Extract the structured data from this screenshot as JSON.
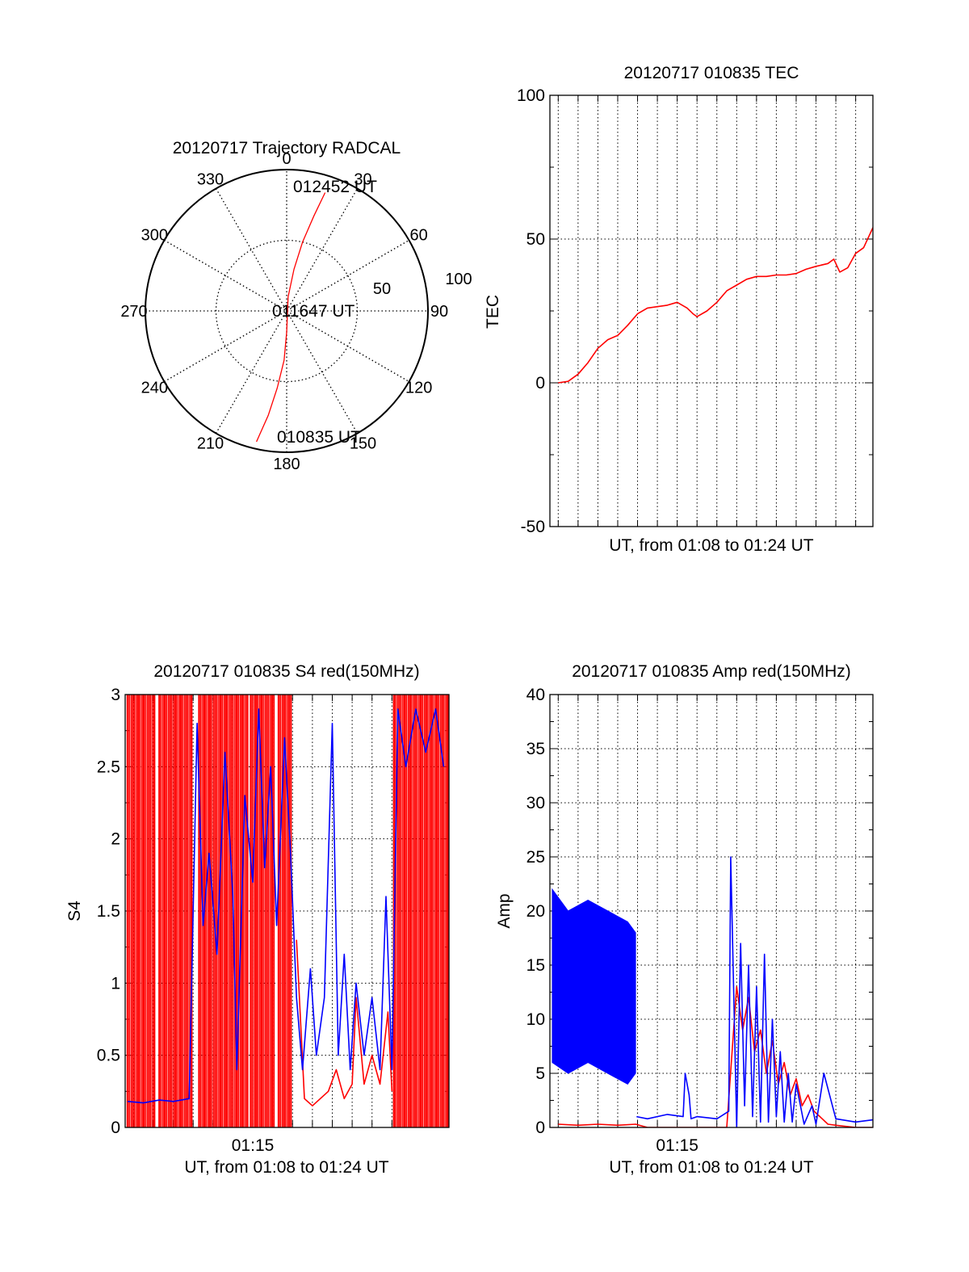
{
  "chart_data": [
    {
      "id": "trajectory",
      "type": "polar",
      "title": "20120717 Trajectory RADCAL",
      "azimuth_labels": [
        "0",
        "30",
        "60",
        "90",
        "120",
        "150",
        "180",
        "210",
        "240",
        "270",
        "300",
        "330"
      ],
      "radius_labels": [
        "50",
        "100"
      ],
      "rmax": 100,
      "start_label": "010835 UT",
      "mid_label": "011647 UT",
      "end_label": "012452 UT",
      "trajectory": [
        [
          193,
          95
        ],
        [
          190,
          75
        ],
        [
          187,
          55
        ],
        [
          183,
          35
        ],
        [
          180,
          15
        ],
        [
          6,
          10
        ],
        [
          10,
          30
        ],
        [
          13,
          50
        ],
        [
          16,
          70
        ],
        [
          18,
          88
        ]
      ],
      "line_color": "#ff0000"
    },
    {
      "id": "tec",
      "type": "line",
      "title": "20120717 010835 TEC",
      "xlabel": "UT, from 01:08 to 01:24 UT",
      "ylabel": "TEC",
      "xlim": [
        8.58,
        24.87
      ],
      "ylim": [
        -50,
        100
      ],
      "yticks": [
        "100",
        "50",
        "0",
        "-50"
      ],
      "ytick_values": [
        100,
        50,
        0,
        -50
      ],
      "grid": true,
      "series": [
        {
          "color": "#ff0000",
          "x": [
            9.0,
            9.5,
            10.0,
            10.5,
            11.0,
            11.5,
            12.0,
            12.5,
            13.0,
            13.5,
            14.0,
            14.5,
            15.0,
            15.5,
            15.8,
            16.0,
            16.5,
            17.0,
            17.5,
            18.0,
            18.5,
            19.0,
            19.5,
            20.0,
            20.5,
            21.0,
            21.5,
            22.0,
            22.6,
            22.9,
            23.2,
            23.6,
            24.0,
            24.4,
            24.87
          ],
          "y": [
            0,
            0.5,
            3,
            7,
            12,
            15,
            16.5,
            20,
            24,
            26,
            26.5,
            27,
            28,
            26,
            24,
            23,
            25,
            28,
            32,
            34,
            36,
            37,
            37,
            37.5,
            37.5,
            38,
            39.5,
            40.5,
            41.5,
            43,
            38.5,
            40,
            45,
            47,
            54
          ]
        }
      ]
    },
    {
      "id": "s4",
      "type": "line",
      "title": "20120717 010835 S4 red(150MHz)",
      "xlabel": "UT, from 01:08 to 01:24 UT",
      "ylabel": "S4",
      "xtick_label": "01:15",
      "xtick_value": 15,
      "xlim": [
        8.58,
        24.87
      ],
      "ylim": [
        0,
        3
      ],
      "yticks": [
        "3",
        "2.5",
        "2",
        "1.5",
        "1",
        "0.5",
        "0"
      ],
      "ytick_values": [
        3,
        2.5,
        2,
        1.5,
        1,
        0.5,
        0
      ],
      "grid": true,
      "series": [
        {
          "color": "#ff0000",
          "saturated_ranges": [
            [
              8.7,
              10.1
            ],
            [
              10.3,
              12.0
            ],
            [
              12.3,
              14.8
            ],
            [
              14.9,
              16.1
            ],
            [
              16.3,
              17.0
            ],
            [
              22.1,
              24.87
            ]
          ],
          "x": [
            17.2,
            17.6,
            18.0,
            18.4,
            18.8,
            19.2,
            19.6,
            20.0,
            20.2,
            20.6,
            21.0,
            21.4,
            21.8,
            22.0
          ],
          "y": [
            1.3,
            0.2,
            0.15,
            0.2,
            0.25,
            0.4,
            0.2,
            0.3,
            0.9,
            0.3,
            0.5,
            0.3,
            0.8,
            0.25
          ]
        },
        {
          "color": "#0000ff",
          "x": [
            8.7,
            9.5,
            10.3,
            11.0,
            11.8,
            12.2,
            12.5,
            12.8,
            13.2,
            13.6,
            14.0,
            14.2,
            14.6,
            15.0,
            15.3,
            15.6,
            15.9,
            16.2,
            16.6,
            16.9,
            17.2,
            17.5,
            17.9,
            18.2,
            18.6,
            19.0,
            19.3,
            19.6,
            19.9,
            20.2,
            20.6,
            21.0,
            21.4,
            21.7,
            22.0,
            22.3,
            22.7,
            23.2,
            23.7,
            24.2,
            24.6
          ],
          "y": [
            0.18,
            0.17,
            0.19,
            0.18,
            0.2,
            2.8,
            1.4,
            1.9,
            1.2,
            2.6,
            1.6,
            0.4,
            2.3,
            1.7,
            2.9,
            1.8,
            2.5,
            1.4,
            2.7,
            1.9,
            0.9,
            0.4,
            1.1,
            0.5,
            0.9,
            2.8,
            0.5,
            1.2,
            0.4,
            1.0,
            0.5,
            0.9,
            0.4,
            1.6,
            0.4,
            2.9,
            2.5,
            2.9,
            2.6,
            2.9,
            2.5
          ]
        }
      ]
    },
    {
      "id": "amp",
      "type": "line",
      "title": "20120717 010835 Amp red(150MHz)",
      "xlabel": "UT, from 01:08 to 01:24 UT",
      "ylabel": "Amp",
      "xtick_label": "01:15",
      "xtick_value": 15,
      "xlim": [
        8.58,
        24.87
      ],
      "ylim": [
        0,
        40
      ],
      "yticks": [
        "40",
        "35",
        "30",
        "25",
        "20",
        "15",
        "10",
        "5",
        "0"
      ],
      "ytick_values": [
        40,
        35,
        30,
        25,
        20,
        15,
        10,
        5,
        0
      ],
      "grid": true,
      "series": [
        {
          "color": "#ff0000",
          "x": [
            9.0,
            10.0,
            11.0,
            12.0,
            12.9,
            13.5,
            15.0,
            16.0,
            17.5,
            18.0,
            18.3,
            18.6,
            18.9,
            19.2,
            19.5,
            19.8,
            20.1,
            20.4,
            20.7,
            21.0,
            21.3,
            21.6,
            21.9,
            22.2,
            22.6,
            23.0,
            24.0,
            24.87
          ],
          "y": [
            0.3,
            0.2,
            0.3,
            0.2,
            0.3,
            0,
            0,
            0,
            0,
            13,
            9,
            12,
            7,
            9,
            5,
            8,
            4,
            6,
            3,
            4.5,
            2,
            3,
            1.5,
            1,
            0.3,
            0.2,
            0,
            0
          ]
        },
        {
          "color": "#0000ff",
          "env_x": [
            8.7,
            9.5,
            10.5,
            11.5,
            12.5,
            12.9
          ],
          "env_hi": [
            22,
            20,
            21,
            20,
            19,
            18
          ],
          "env_lo": [
            6,
            5,
            6,
            5,
            4,
            5
          ],
          "x": [
            12.95,
            13.5,
            14.5,
            15.3,
            15.4,
            15.6,
            15.7,
            16.0,
            17.0,
            17.6,
            17.7,
            18.0,
            18.2,
            18.4,
            18.6,
            18.8,
            19.0,
            19.2,
            19.4,
            19.6,
            19.8,
            20.0,
            20.2,
            20.4,
            20.6,
            20.8,
            21.0,
            21.4,
            21.8,
            22.0,
            22.4,
            23.0,
            24.0,
            24.87
          ],
          "y": [
            1,
            0.8,
            1.2,
            1,
            5,
            3,
            0.8,
            1,
            0.8,
            1.5,
            25,
            0,
            17,
            2,
            15,
            1,
            13,
            0.5,
            16,
            0.5,
            10,
            1,
            7,
            0.5,
            5,
            0.5,
            4,
            0.3,
            2,
            0.3,
            5,
            0.8,
            0.5,
            0.7
          ]
        }
      ]
    }
  ]
}
